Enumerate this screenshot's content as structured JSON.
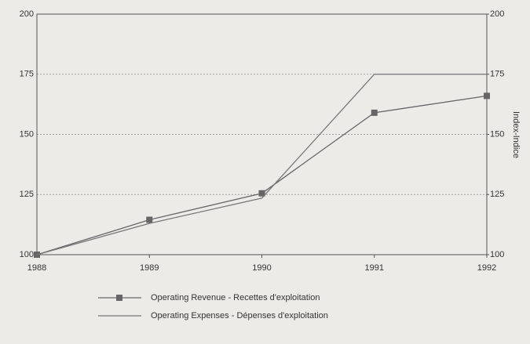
{
  "chart_data": {
    "type": "line",
    "categories": [
      "1988",
      "1989",
      "1990",
      "1991",
      "1992"
    ],
    "series": [
      {
        "name": "Operating Revenue - Recettes d'exploitation",
        "color": "#666666",
        "marker": "square",
        "values": [
          100,
          114.5,
          125.5,
          159,
          166
        ]
      },
      {
        "name": "Operating Expenses - Dépenses d'exploitation",
        "color": "#777777",
        "values": [
          100,
          113,
          123.5,
          175,
          175
        ]
      }
    ],
    "ylim": [
      100,
      200
    ],
    "yticks": [
      100,
      125,
      150,
      175,
      200
    ],
    "y2label": "Index-Indice",
    "y2lim": [
      100,
      200
    ],
    "y2ticks": [
      100,
      125,
      150,
      175,
      200
    ],
    "grid": true
  }
}
